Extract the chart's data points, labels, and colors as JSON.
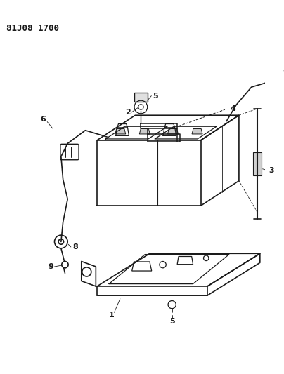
{
  "title": "81J08 1700",
  "background_color": "#ffffff",
  "line_color": "#1a1a1a",
  "fig_width": 4.04,
  "fig_height": 5.33,
  "dpi": 100
}
